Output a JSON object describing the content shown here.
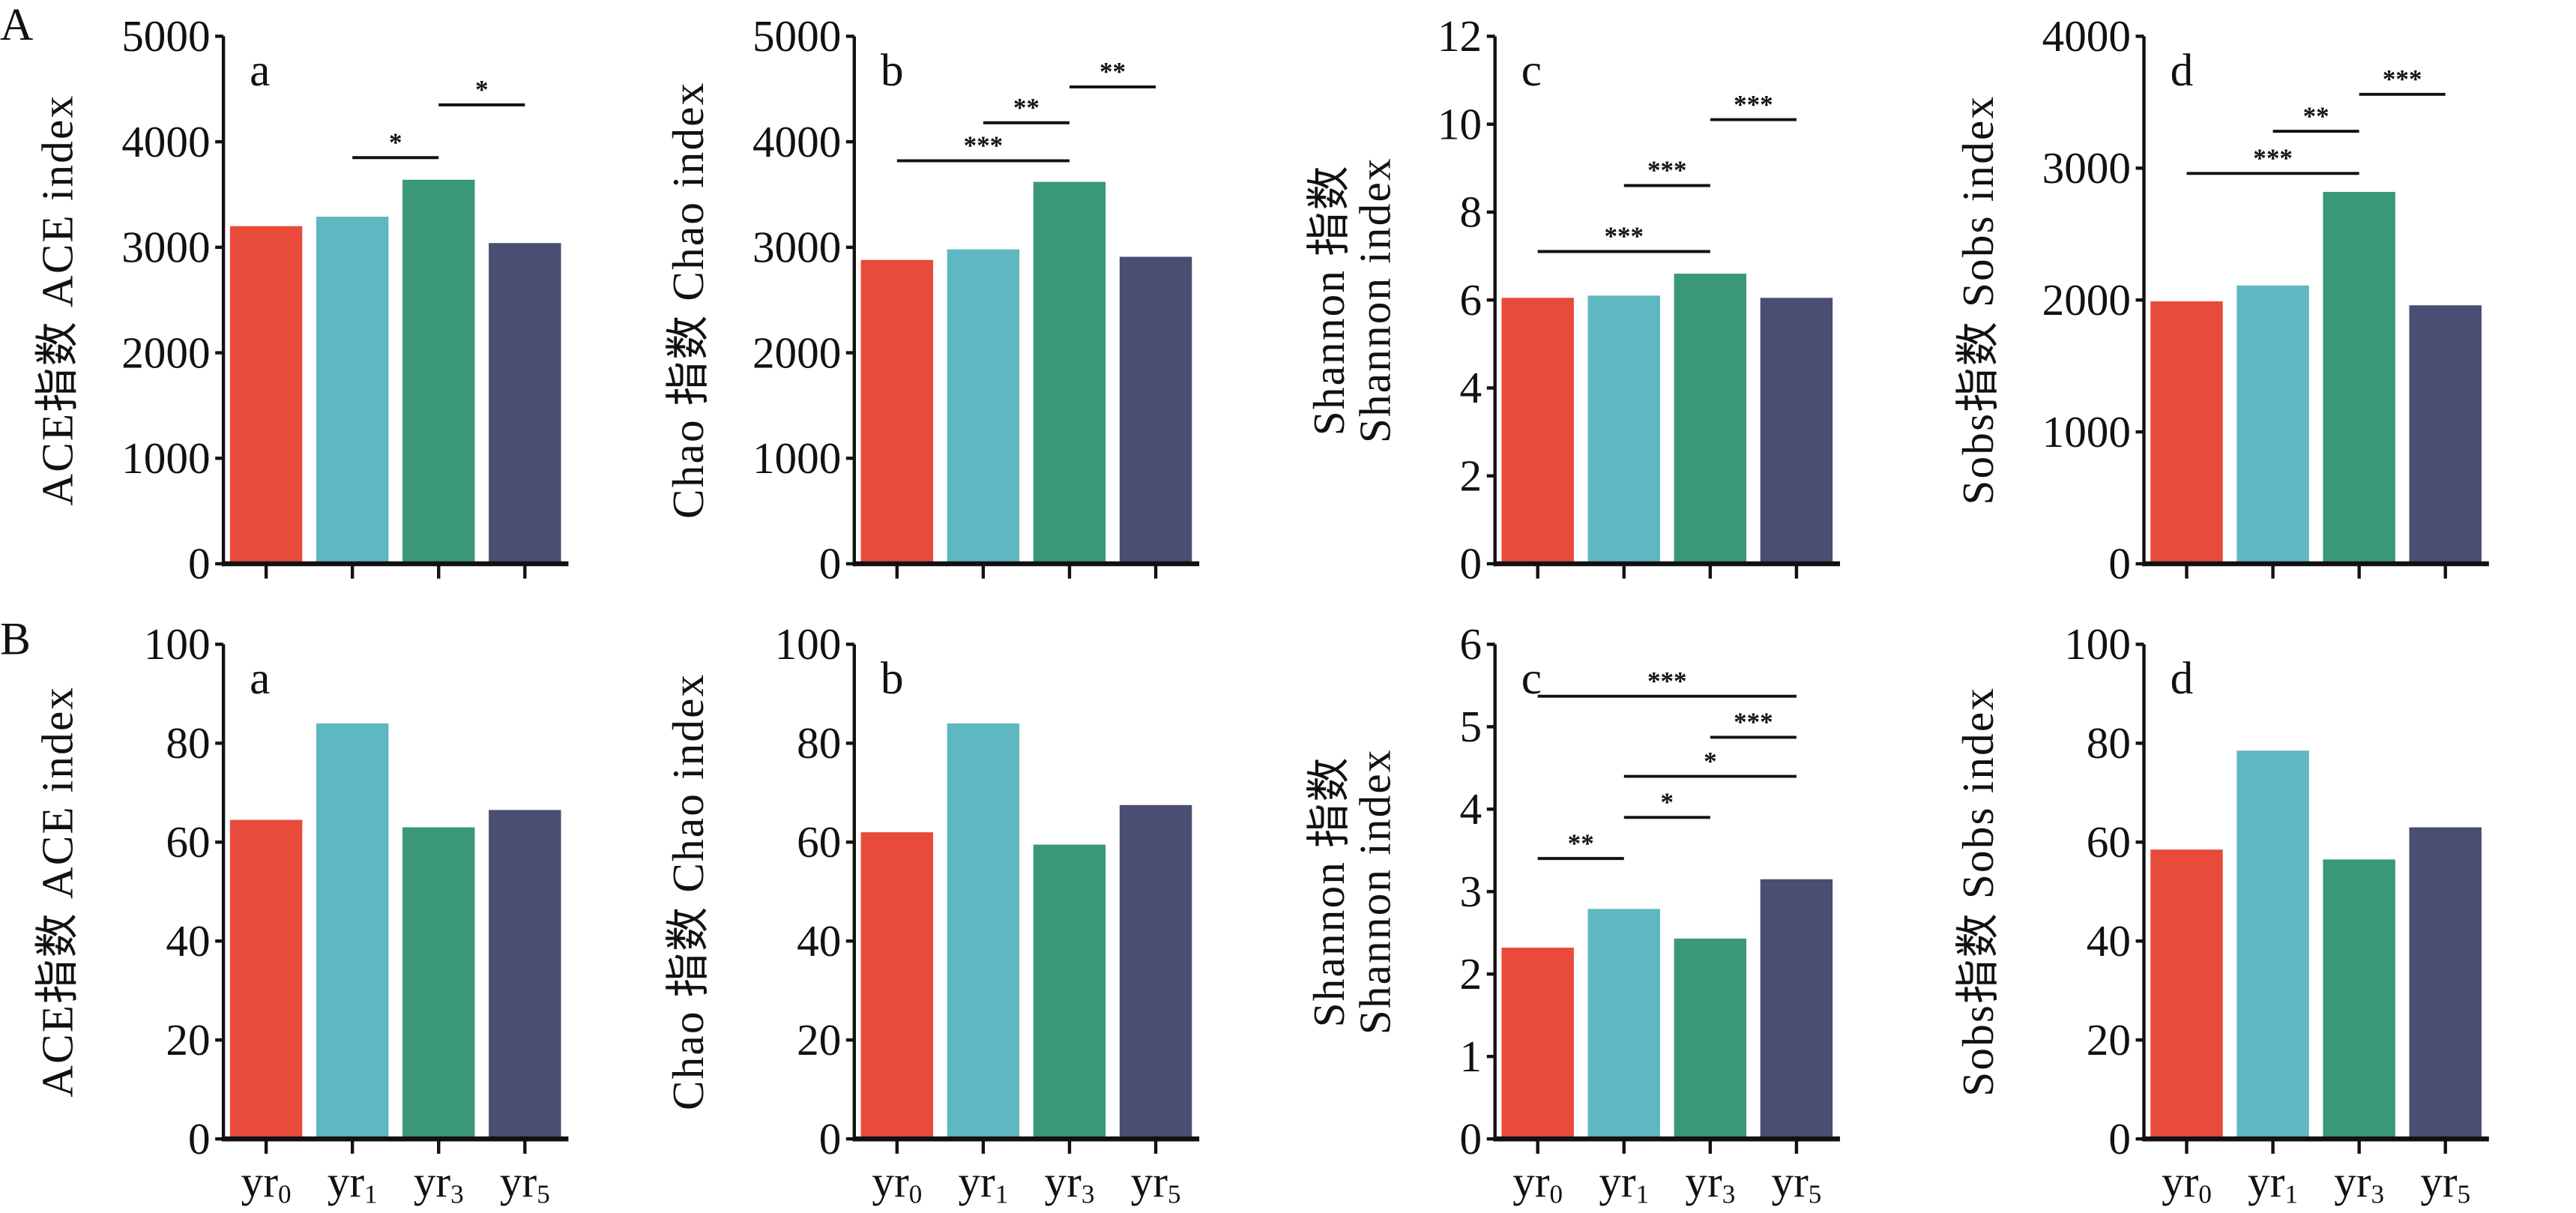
{
  "chart_data": {
    "colors": [
      "#E84B3A",
      "#5FB7C1",
      "#3B977A",
      "#4A4E73"
    ],
    "categories": [
      "yr0",
      "yr1",
      "yr3",
      "yr5"
    ],
    "category_labels": [
      {
        "base": "yr",
        "sub": "0"
      },
      {
        "base": "yr",
        "sub": "1"
      },
      {
        "base": "yr",
        "sub": "3"
      },
      {
        "base": "yr",
        "sub": "5"
      }
    ],
    "rows": [
      {
        "label": "A",
        "panels": [
          {
            "type": "bar",
            "letter": "a",
            "ylabel": [
              "ACE指数 ACE index"
            ],
            "ylim": [
              0,
              5000
            ],
            "yticks": [
              0,
              1000,
              2000,
              3000,
              4000,
              5000
            ],
            "values": [
              3200,
              3290,
              3640,
              3040
            ],
            "significance": [
              {
                "from": "yr1",
                "to": "yr3",
                "label": "*"
              },
              {
                "from": "yr3",
                "to": "yr5",
                "label": "*"
              }
            ]
          },
          {
            "type": "bar",
            "letter": "b",
            "ylabel": [
              "Chao 指数 Chao index"
            ],
            "ylim": [
              0,
              5000
            ],
            "yticks": [
              0,
              1000,
              2000,
              3000,
              4000,
              5000
            ],
            "values": [
              2880,
              2980,
              3620,
              2910
            ],
            "significance": [
              {
                "from": "yr0",
                "to": "yr3",
                "label": "***"
              },
              {
                "from": "yr1",
                "to": "yr3",
                "label": "**"
              },
              {
                "from": "yr3",
                "to": "yr5",
                "label": "**"
              }
            ]
          },
          {
            "type": "bar",
            "letter": "c",
            "ylabel": [
              "Shannon 指数",
              "Shannon index"
            ],
            "ylim": [
              0,
              12
            ],
            "yticks": [
              0,
              2,
              4,
              6,
              8,
              10,
              12
            ],
            "values": [
              6.05,
              6.1,
              6.6,
              6.05
            ],
            "significance": [
              {
                "from": "yr0",
                "to": "yr3",
                "label": "***"
              },
              {
                "from": "yr1",
                "to": "yr3",
                "label": "***"
              },
              {
                "from": "yr3",
                "to": "yr5",
                "label": "***"
              }
            ]
          },
          {
            "type": "bar",
            "letter": "d",
            "ylabel": [
              "Sobs指数 Sobs index"
            ],
            "ylim": [
              0,
              4000
            ],
            "yticks": [
              0,
              1000,
              2000,
              3000,
              4000
            ],
            "values": [
              1990,
              2110,
              2820,
              1960
            ],
            "significance": [
              {
                "from": "yr0",
                "to": "yr3",
                "label": "***"
              },
              {
                "from": "yr1",
                "to": "yr3",
                "label": "**"
              },
              {
                "from": "yr3",
                "to": "yr5",
                "label": "***"
              }
            ]
          }
        ]
      },
      {
        "label": "B",
        "panels": [
          {
            "type": "bar",
            "letter": "a",
            "ylabel": [
              "ACE指数 ACE index"
            ],
            "ylim": [
              0,
              100
            ],
            "yticks": [
              0,
              20,
              40,
              60,
              80,
              100
            ],
            "values": [
              64.5,
              84,
              63,
              66.5
            ],
            "significance": []
          },
          {
            "type": "bar",
            "letter": "b",
            "ylabel": [
              "Chao 指数 Chao index"
            ],
            "ylim": [
              0,
              100
            ],
            "yticks": [
              0,
              20,
              40,
              60,
              80,
              100
            ],
            "values": [
              62,
              84,
              59.5,
              67.5
            ],
            "significance": []
          },
          {
            "type": "bar",
            "letter": "c",
            "ylabel": [
              "Shannon 指数",
              "Shannon index"
            ],
            "ylim": [
              0,
              6
            ],
            "yticks": [
              0,
              1,
              2,
              3,
              4,
              5,
              6
            ],
            "values": [
              2.32,
              2.79,
              2.43,
              3.15
            ],
            "significance": [
              {
                "from": "yr0",
                "to": "yr1",
                "label": "**"
              },
              {
                "from": "yr1",
                "to": "yr3",
                "label": "*"
              },
              {
                "from": "yr1",
                "to": "yr5",
                "label": "*"
              },
              {
                "from": "yr3",
                "to": "yr5",
                "label": "***"
              },
              {
                "from": "yr0",
                "to": "yr5",
                "label": "***"
              }
            ]
          },
          {
            "type": "bar",
            "letter": "d",
            "ylabel": [
              "Sobs指数 Sobs index"
            ],
            "ylim": [
              0,
              100
            ],
            "yticks": [
              0,
              20,
              40,
              60,
              80,
              100
            ],
            "values": [
              58.5,
              78.5,
              56.5,
              63
            ],
            "significance": []
          }
        ]
      }
    ]
  }
}
